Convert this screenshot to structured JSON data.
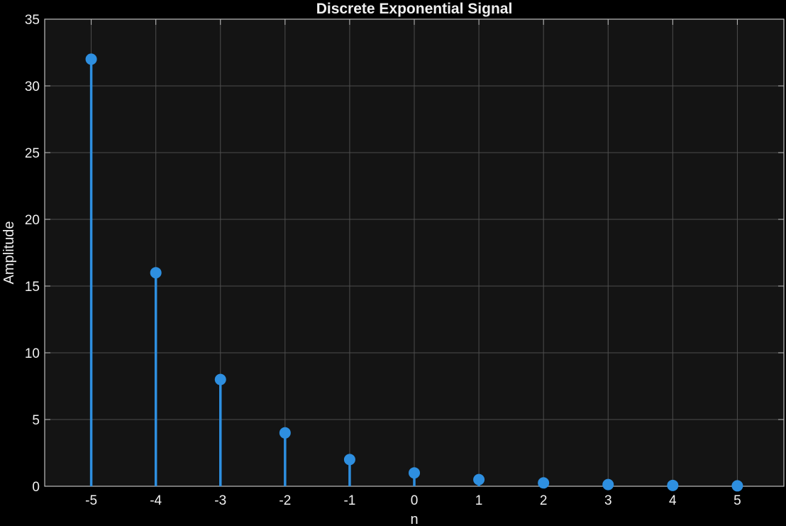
{
  "chart_data": {
    "type": "stem",
    "title": "Discrete Exponential Signal",
    "xlabel": "n",
    "ylabel": "Amplitude",
    "x": [
      -5,
      -4,
      -3,
      -2,
      -1,
      0,
      1,
      2,
      3,
      4,
      5
    ],
    "y": [
      32,
      16,
      8,
      4,
      2,
      1,
      0.5,
      0.25,
      0.125,
      0.0625,
      0.03125
    ],
    "xlim": [
      -5.72,
      5.72
    ],
    "ylim": [
      0,
      35
    ],
    "xticks": [
      -5,
      -4,
      -3,
      -2,
      -1,
      0,
      1,
      2,
      3,
      4,
      5
    ],
    "yticks": [
      0,
      5,
      10,
      15,
      20,
      25,
      30,
      35
    ],
    "grid": true,
    "legend": "none",
    "colors": {
      "background": "#000000",
      "axes_background": "#141414",
      "axes_edge": "#bfbfbf",
      "grid": "#4d4d4d",
      "text": "#f0f0f0",
      "stem": "#2e8fe0"
    }
  }
}
